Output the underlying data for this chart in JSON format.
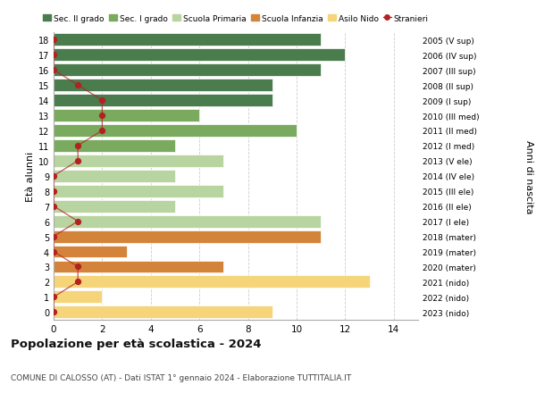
{
  "ages": [
    18,
    17,
    16,
    15,
    14,
    13,
    12,
    11,
    10,
    9,
    8,
    7,
    6,
    5,
    4,
    3,
    2,
    1,
    0
  ],
  "right_labels": [
    "2005 (V sup)",
    "2006 (IV sup)",
    "2007 (III sup)",
    "2008 (II sup)",
    "2009 (I sup)",
    "2010 (III med)",
    "2011 (II med)",
    "2012 (I med)",
    "2013 (V ele)",
    "2014 (IV ele)",
    "2015 (III ele)",
    "2016 (II ele)",
    "2017 (I ele)",
    "2018 (mater)",
    "2019 (mater)",
    "2020 (mater)",
    "2021 (nido)",
    "2022 (nido)",
    "2023 (nido)"
  ],
  "bar_values": [
    11,
    12,
    11,
    9,
    9,
    6,
    10,
    5,
    7,
    5,
    7,
    5,
    11,
    11,
    3,
    7,
    13,
    2,
    9
  ],
  "bar_colors": [
    "#4a7c4e",
    "#4a7c4e",
    "#4a7c4e",
    "#4a7c4e",
    "#4a7c4e",
    "#7aaa5e",
    "#7aaa5e",
    "#7aaa5e",
    "#b8d4a0",
    "#b8d4a0",
    "#b8d4a0",
    "#b8d4a0",
    "#b8d4a0",
    "#d4843a",
    "#d4843a",
    "#d4843a",
    "#f5d47a",
    "#f5d47a",
    "#f5d47a"
  ],
  "stranieri_values": [
    0,
    0,
    0,
    1,
    2,
    2,
    2,
    1,
    1,
    0,
    0,
    0,
    1,
    0,
    0,
    1,
    1,
    0,
    0
  ],
  "stranieri_color": "#b22222",
  "title": "Popolazione per età scolastica - 2024",
  "subtitle": "COMUNE DI CALOSSO (AT) - Dati ISTAT 1° gennaio 2024 - Elaborazione TUTTITALIA.IT",
  "ylabel": "Età alunni",
  "right_ylabel": "Anni di nascita",
  "xlim": [
    0,
    15
  ],
  "xticks": [
    0,
    2,
    4,
    6,
    8,
    10,
    12,
    14
  ],
  "legend_entries": [
    {
      "label": "Sec. II grado",
      "color": "#4a7c4e"
    },
    {
      "label": "Sec. I grado",
      "color": "#7aaa5e"
    },
    {
      "label": "Scuola Primaria",
      "color": "#b8d4a0"
    },
    {
      "label": "Scuola Infanzia",
      "color": "#d4843a"
    },
    {
      "label": "Asilo Nido",
      "color": "#f5d47a"
    },
    {
      "label": "Stranieri",
      "color": "#b22222"
    }
  ],
  "grid_color": "#cccccc",
  "background_color": "#ffffff"
}
